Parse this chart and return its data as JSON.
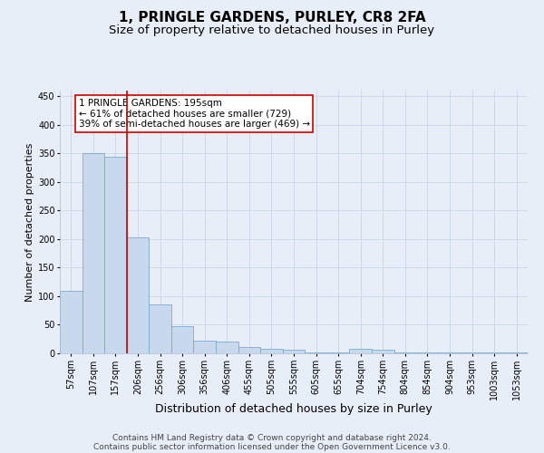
{
  "title": "1, PRINGLE GARDENS, PURLEY, CR8 2FA",
  "subtitle": "Size of property relative to detached houses in Purley",
  "xlabel": "Distribution of detached houses by size in Purley",
  "ylabel": "Number of detached properties",
  "footer_line1": "Contains HM Land Registry data © Crown copyright and database right 2024.",
  "footer_line2": "Contains public sector information licensed under the Open Government Licence v3.0.",
  "bar_labels": [
    "57sqm",
    "107sqm",
    "157sqm",
    "206sqm",
    "256sqm",
    "306sqm",
    "356sqm",
    "406sqm",
    "455sqm",
    "505sqm",
    "555sqm",
    "605sqm",
    "655sqm",
    "704sqm",
    "754sqm",
    "804sqm",
    "854sqm",
    "904sqm",
    "953sqm",
    "1003sqm",
    "1053sqm"
  ],
  "bar_values": [
    110,
    350,
    345,
    203,
    85,
    47,
    23,
    21,
    11,
    8,
    6,
    2,
    1,
    8,
    6,
    2,
    1,
    1,
    1,
    2,
    2
  ],
  "bar_color": "#c9d9ed",
  "bar_edge_color": "#7baad0",
  "vline_x": 2.5,
  "vline_color": "#cc0000",
  "annotation_text": "1 PRINGLE GARDENS: 195sqm\n← 61% of detached houses are smaller (729)\n39% of semi-detached houses are larger (469) →",
  "annotation_box_facecolor": "white",
  "annotation_box_edgecolor": "#cc0000",
  "ylim": [
    0,
    460
  ],
  "yticks": [
    0,
    50,
    100,
    150,
    200,
    250,
    300,
    350,
    400,
    450
  ],
  "background_color": "#e8eef8",
  "grid_color": "#c8d4e8",
  "title_fontsize": 11,
  "subtitle_fontsize": 9.5,
  "xlabel_fontsize": 9,
  "ylabel_fontsize": 8,
  "tick_fontsize": 7,
  "annot_fontsize": 7.5,
  "footer_fontsize": 6.5
}
